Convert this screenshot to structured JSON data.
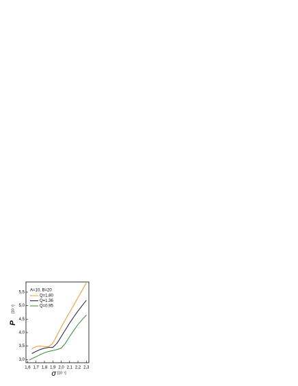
{
  "chart_data": {
    "type": "line",
    "annotation": "A=10, B=20",
    "x_label": "σ",
    "x_unit": "[10⁻¹]",
    "y_label": "P",
    "y_unit": "[10⁻²]",
    "x": [
      1.62,
      1.65,
      1.7,
      1.75,
      1.8,
      1.85,
      1.9,
      1.95,
      2.0,
      2.05,
      2.1,
      2.15,
      2.2,
      2.25,
      2.3
    ],
    "series": [
      {
        "name": "Q=1.80",
        "color": "#f7941d",
        "values": [
          null,
          3.4,
          3.48,
          3.5,
          3.48,
          3.48,
          3.6,
          3.9,
          4.2,
          4.48,
          4.75,
          5.02,
          5.3,
          5.57,
          5.85
        ]
      },
      {
        "name": "Q=1.36",
        "color": "#1a1a3a",
        "values": [
          null,
          3.22,
          3.3,
          3.37,
          3.42,
          3.45,
          3.45,
          3.6,
          3.85,
          4.1,
          4.35,
          4.58,
          4.8,
          5.0,
          5.2
        ]
      },
      {
        "name": "Q=0.95",
        "color": "#2e8b2e",
        "values": [
          2.98,
          3.03,
          3.1,
          3.18,
          3.25,
          3.3,
          3.33,
          3.37,
          3.42,
          3.6,
          3.85,
          4.08,
          4.3,
          4.48,
          4.65
        ]
      }
    ],
    "xlim": [
      1.58,
      2.33
    ],
    "xticks": [
      {
        "value": 1.6,
        "label": "1,6"
      },
      {
        "value": 1.7,
        "label": "1,7"
      },
      {
        "value": 1.8,
        "label": "1,8"
      },
      {
        "value": 1.9,
        "label": "1,9"
      },
      {
        "value": 2.0,
        "label": "2,0"
      },
      {
        "value": 2.1,
        "label": "2,1"
      },
      {
        "value": 2.2,
        "label": "2,2"
      },
      {
        "value": 2.3,
        "label": "2,3"
      }
    ],
    "ylim": [
      2.88,
      5.88
    ],
    "yticks": [
      {
        "value": 3.0,
        "label": "3,0"
      },
      {
        "value": 3.5,
        "label": "3,5"
      },
      {
        "value": 4.0,
        "label": "4,0"
      },
      {
        "value": 4.5,
        "label": "4,5"
      },
      {
        "value": 5.0,
        "label": "5,0"
      },
      {
        "value": 5.5,
        "label": "5,5"
      }
    ],
    "legend": "upper-left"
  }
}
